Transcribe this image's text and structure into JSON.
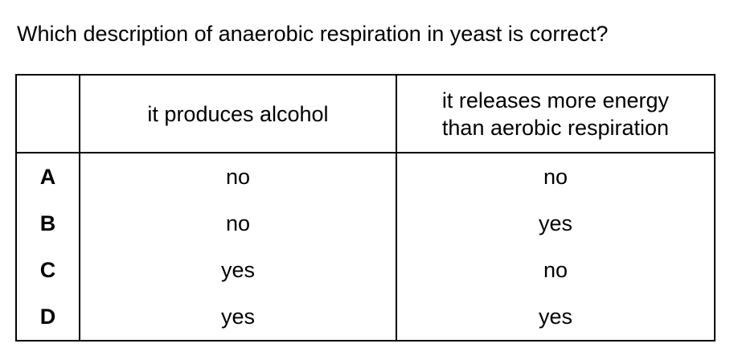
{
  "question": "Which description of anaerobic respiration in yeast is correct?",
  "table": {
    "corner": "",
    "headers": [
      [
        "it produces alcohol"
      ],
      [
        "it releases more energy",
        "than aerobic respiration"
      ]
    ],
    "rows": [
      {
        "letter": "A",
        "values": [
          "no",
          "no"
        ]
      },
      {
        "letter": "B",
        "values": [
          "no",
          "yes"
        ]
      },
      {
        "letter": "C",
        "values": [
          "yes",
          "no"
        ]
      },
      {
        "letter": "D",
        "values": [
          "yes",
          "yes"
        ]
      }
    ]
  }
}
